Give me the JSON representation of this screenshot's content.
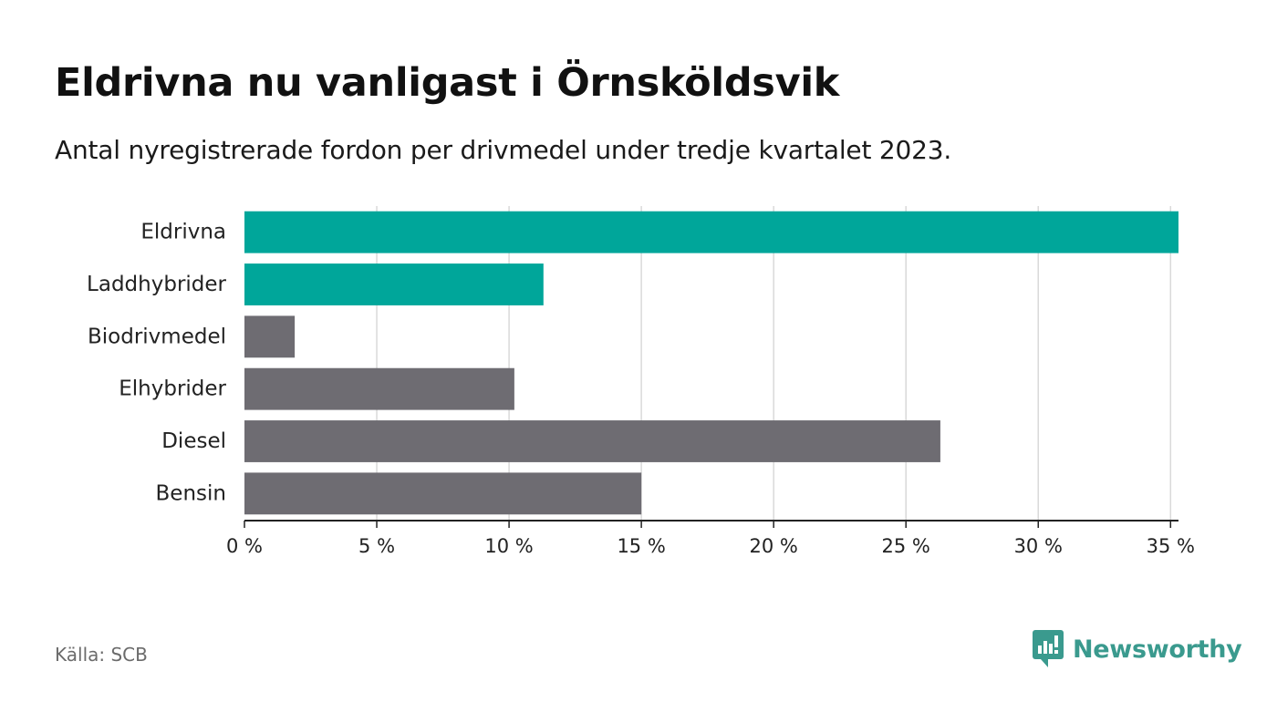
{
  "title": "Eldrivna nu vanligast i Örnsköldsvik",
  "subtitle": "Antal nyregistrerade fordon per drivmedel under tredje kvartalet 2023.",
  "source": "Källa: SCB",
  "brand": {
    "name": "Newsworthy",
    "icon": "newsworthy-logo-icon"
  },
  "colors": {
    "highlight": "#00a69a",
    "default": "#6e6c72",
    "grid": "#d9d9d9",
    "axis": "#222222"
  },
  "chart_data": {
    "type": "bar",
    "orientation": "horizontal",
    "categories": [
      "Eldrivna",
      "Laddhybrider",
      "Biodrivmedel",
      "Elhybrider",
      "Diesel",
      "Bensin"
    ],
    "values": [
      35.3,
      11.3,
      1.9,
      10.2,
      26.3,
      15.0
    ],
    "highlighted": [
      true,
      true,
      false,
      false,
      false,
      false
    ],
    "xlim": [
      0,
      35.3
    ],
    "xticks": [
      0,
      5,
      10,
      15,
      20,
      25,
      30,
      35
    ],
    "xtick_labels": [
      "0 %",
      "5 %",
      "10 %",
      "15 %",
      "20 %",
      "25 %",
      "30 %",
      "35 %"
    ],
    "xlabel": "",
    "ylabel": "",
    "grid": true
  }
}
